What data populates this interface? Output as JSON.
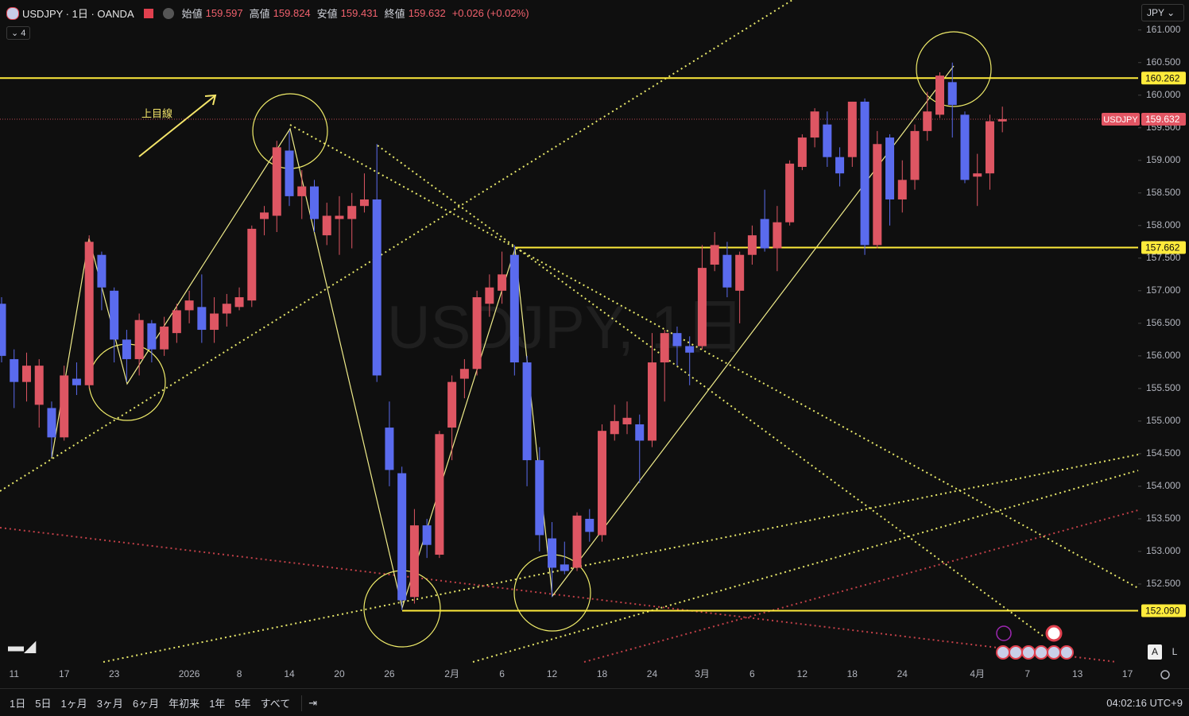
{
  "header": {
    "symbol": "USDJPY · 1日 · OANDA",
    "open_label": "始値",
    "open": "159.597",
    "high_label": "高値",
    "high": "159.824",
    "low_label": "安値",
    "low": "159.431",
    "close_label": "終値",
    "close": "159.632",
    "change": "+0.026 (+0.02%)",
    "indicators": "4",
    "currency": "JPY"
  },
  "toolbar": {
    "ranges": [
      "1日",
      "5日",
      "1ヶ月",
      "3ヶ月",
      "6ヶ月",
      "年初来",
      "1年",
      "5年",
      "すべて"
    ],
    "clock": "04:02:16 UTC+9",
    "auto": "A",
    "log": "L"
  },
  "chart_data": {
    "type": "candlestick",
    "watermark": "USDJPY, 1日",
    "annotation": "上目線",
    "up_color": "#de5663",
    "down_color": "#5a6bee",
    "ylim": [
      151.28,
      161.46
    ],
    "yticks": [
      {
        "value": 152.5,
        "label": "152.500"
      },
      {
        "value": 153,
        "label": "153.000"
      },
      {
        "value": 153.5,
        "label": "153.500"
      },
      {
        "value": 154,
        "label": "154.000"
      },
      {
        "value": 154.5,
        "label": "154.500"
      },
      {
        "value": 155,
        "label": "155.000"
      },
      {
        "value": 155.5,
        "label": "155.500"
      },
      {
        "value": 156,
        "label": "156.000"
      },
      {
        "value": 156.5,
        "label": "156.500"
      },
      {
        "value": 157,
        "label": "157.000"
      },
      {
        "value": 157.5,
        "label": "157.500"
      },
      {
        "value": 158,
        "label": "158.000"
      },
      {
        "value": 158.5,
        "label": "158.500"
      },
      {
        "value": 159,
        "label": "159.000"
      },
      {
        "value": 159.5,
        "label": "159.500"
      },
      {
        "value": 160,
        "label": "160.000"
      },
      {
        "value": 160.5,
        "label": "160.500"
      },
      {
        "value": 161,
        "label": "161.000"
      }
    ],
    "categories": [
      null,
      "11",
      null,
      null,
      null,
      "17",
      null,
      null,
      null,
      "23",
      null,
      null,
      null,
      null,
      null,
      "2026",
      null,
      null,
      null,
      "8",
      null,
      null,
      null,
      "14",
      null,
      null,
      null,
      "20",
      null,
      null,
      null,
      "26",
      null,
      null,
      null,
      null,
      "2月",
      null,
      null,
      null,
      "6",
      null,
      null,
      null,
      "12",
      null,
      null,
      null,
      "18",
      null,
      null,
      null,
      "24",
      null,
      null,
      null,
      "3月",
      null,
      null,
      null,
      "6",
      null,
      null,
      null,
      "12",
      null,
      null,
      null,
      "18",
      null,
      null,
      null,
      "24",
      null,
      null,
      null,
      null,
      null,
      "4月",
      null,
      null,
      null,
      "7",
      null,
      null,
      null,
      "13",
      null,
      null,
      null,
      "17"
    ],
    "series": [
      {
        "name": "USDJPY",
        "open": [
          156.8,
          155.95,
          155.6,
          155.25,
          155.2,
          154.75,
          155.65,
          155.55,
          157.55,
          157.0,
          156.25,
          155.95,
          156.5,
          156.1,
          156.35,
          156.7,
          156.75,
          156.4,
          156.65,
          156.75,
          156.85,
          158.1,
          158.15,
          159.15,
          158.45,
          158.6,
          157.85,
          158.1,
          158.1,
          158.3,
          158.4,
          154.9,
          154.2,
          152.3,
          153.4,
          152.95,
          154.9,
          155.65,
          155.8,
          156.8,
          157.0,
          157.55,
          155.9,
          154.4,
          153.2,
          152.8,
          152.75,
          153.5,
          153.25,
          154.8,
          154.95,
          154.95,
          154.7,
          155.9,
          156.35,
          156.15,
          156.15,
          157.4,
          157.55,
          157.0,
          157.55,
          158.1,
          157.65,
          158.05,
          158.9,
          159.35,
          159.55,
          159.05,
          159.05,
          159.9,
          157.7,
          159.35,
          158.4,
          158.7,
          159.45,
          159.7,
          160.2,
          159.7,
          158.75,
          158.8,
          159.597,
          null,
          null,
          null,
          null,
          null,
          null,
          null,
          null,
          null,
          null
        ],
        "high": [
          156.9,
          156.1,
          156.05,
          155.95,
          155.3,
          155.85,
          155.9,
          157.85,
          157.6,
          157.05,
          156.4,
          156.65,
          156.55,
          156.6,
          156.8,
          157.0,
          157.25,
          156.9,
          156.95,
          157.05,
          158.0,
          158.3,
          159.3,
          159.45,
          158.85,
          158.7,
          158.35,
          158.45,
          158.5,
          158.8,
          159.25,
          155.3,
          154.3,
          153.65,
          153.5,
          154.85,
          155.7,
          155.95,
          157.0,
          157.25,
          157.6,
          157.7,
          156.0,
          154.6,
          153.45,
          153.15,
          153.6,
          153.65,
          154.95,
          155.25,
          155.3,
          155.1,
          156.35,
          156.4,
          156.45,
          156.3,
          157.7,
          157.9,
          157.75,
          157.6,
          158.0,
          158.55,
          158.3,
          159.0,
          159.4,
          159.8,
          159.75,
          159.2,
          159.9,
          159.95,
          159.45,
          159.4,
          159.0,
          159.55,
          160.05,
          160.35,
          160.5,
          159.75,
          159.1,
          159.7,
          159.824,
          null,
          null,
          null,
          null,
          null,
          null,
          null,
          null,
          null,
          null
        ],
        "low": [
          155.9,
          155.2,
          155.3,
          154.9,
          154.45,
          154.7,
          155.4,
          155.5,
          156.7,
          155.9,
          155.6,
          155.7,
          155.9,
          156.0,
          156.2,
          156.5,
          156.2,
          156.2,
          156.45,
          156.7,
          156.75,
          157.85,
          157.9,
          158.3,
          158.1,
          157.9,
          157.7,
          157.55,
          157.65,
          158.2,
          155.6,
          154.0,
          152.1,
          152.2,
          152.9,
          152.9,
          154.4,
          155.35,
          155.7,
          156.6,
          156.8,
          155.7,
          154.0,
          153.0,
          152.3,
          152.65,
          152.7,
          153.15,
          153.15,
          154.7,
          154.8,
          154.05,
          154.6,
          155.3,
          155.85,
          155.55,
          156.1,
          157.3,
          156.9,
          156.5,
          157.4,
          157.6,
          157.3,
          158.0,
          158.85,
          159.2,
          158.9,
          158.6,
          158.9,
          157.55,
          157.65,
          158.0,
          158.2,
          158.55,
          159.3,
          159.65,
          159.35,
          158.65,
          158.3,
          158.55,
          159.431,
          null,
          null,
          null,
          null,
          null,
          null,
          null,
          null,
          null,
          null
        ],
        "close": [
          156.0,
          155.6,
          155.85,
          155.85,
          154.75,
          155.7,
          155.55,
          157.75,
          157.05,
          156.25,
          155.95,
          156.55,
          156.1,
          156.45,
          156.7,
          156.85,
          156.4,
          156.65,
          156.8,
          156.9,
          157.95,
          158.2,
          159.2,
          158.45,
          158.6,
          158.1,
          158.15,
          158.15,
          158.3,
          158.4,
          155.7,
          154.25,
          152.25,
          153.4,
          153.1,
          154.8,
          155.6,
          155.8,
          156.9,
          157.05,
          157.25,
          155.9,
          154.4,
          153.25,
          152.75,
          152.7,
          153.55,
          153.3,
          154.85,
          155.0,
          155.05,
          154.7,
          155.9,
          156.35,
          156.15,
          156.05,
          157.35,
          157.7,
          157.05,
          157.55,
          157.85,
          157.65,
          158.05,
          158.95,
          159.35,
          159.75,
          159.05,
          158.8,
          159.9,
          157.7,
          159.25,
          158.4,
          158.7,
          159.45,
          159.75,
          160.3,
          159.85,
          158.7,
          158.8,
          159.6,
          159.632,
          null,
          null,
          null,
          null,
          null,
          null,
          null,
          null,
          null,
          null
        ]
      }
    ],
    "hlines": [
      {
        "value": 160.262,
        "label": "160.262",
        "color": "#ffeb3b"
      },
      {
        "value": 157.662,
        "label": "157.662",
        "color": "#ffeb3b"
      },
      {
        "value": 152.09,
        "label": "152.090",
        "color": "#ffeb3b"
      }
    ],
    "last_price": {
      "name": "USDJPY",
      "value": 159.632,
      "label": "159.632",
      "color": "#e25563"
    }
  }
}
